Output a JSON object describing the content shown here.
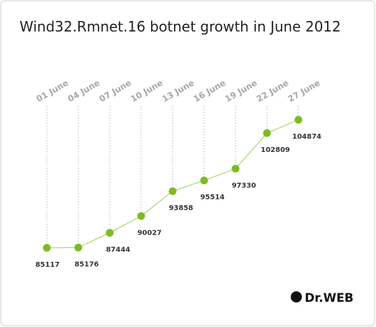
{
  "chart_data": {
    "type": "line",
    "title": "Wind32.Rmnet.16 botnet growth in June 2012",
    "categories": [
      "01 June",
      "04 June",
      "07 June",
      "10 June",
      "13 June",
      "16 June",
      "19 June",
      "22 June",
      "27 June"
    ],
    "series": [
      {
        "name": "Wind32.Rmnet.16",
        "color": "#7cbc1f",
        "values": [
          85117,
          85176,
          87444,
          90027,
          93858,
          95514,
          97330,
          102809,
          104874
        ]
      }
    ],
    "line_color": "#a9d66c",
    "logo": "Dr.WEB"
  }
}
